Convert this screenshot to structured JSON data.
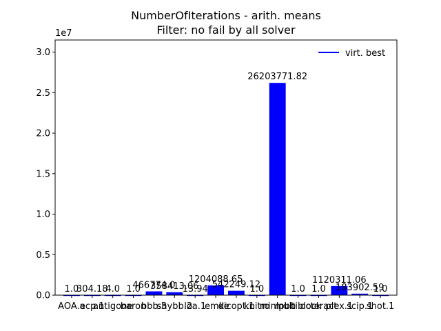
{
  "chart_data": {
    "type": "bar",
    "title_line1": "NumberOfIterations - arith. means",
    "title_line2": "Filter: no fail by all solver",
    "offset_label": "1e7",
    "xlabel": "",
    "ylabel": "",
    "ylim": [
      0,
      31500000
    ],
    "yticks": [
      0,
      5000000,
      10000000,
      15000000,
      20000000,
      25000000,
      30000000
    ],
    "ytick_labels": [
      "0.0",
      "0.5",
      "1.0",
      "1.5",
      "2.0",
      "2.5",
      "3.0"
    ],
    "bar_color": "#0000ff",
    "grid": false,
    "legend": {
      "placement": "top-right",
      "entries": [
        {
          "label": "virt. best",
          "color": "#0000ff"
        }
      ]
    },
    "categories": [
      "AOA.a",
      "ecp.1",
      "antigone",
      "baron",
      "bbb.3",
      "shybb.2",
      "loa.1",
      "lemke",
      "dicopt.1",
      "knitro",
      "minlpbb",
      "multiblock",
      "octeract",
      "plex.1",
      "scip.1",
      "shot.1"
    ],
    "values": [
      1.0,
      304.18,
      4.0,
      1.0,
      466774.0,
      358413.06,
      13.94,
      1204088.65,
      542249.12,
      1.0,
      26203771.82,
      1.0,
      1.0,
      1120311.06,
      183902.59,
      1.0
    ],
    "value_labels": [
      "1.0",
      "304.18",
      "4.0",
      "1.0",
      "466774.0",
      "358413.06",
      "13.94",
      "1204088.65",
      "542249.12",
      "1.0",
      "26203771.82",
      "1.0",
      "1.0",
      "1120311.06",
      "183902.59",
      "1.0"
    ]
  }
}
